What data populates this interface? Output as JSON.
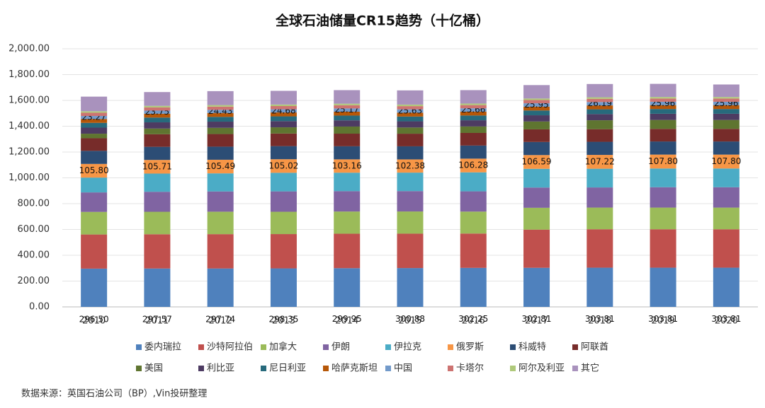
{
  "chart_data": {
    "type": "stacked_bar",
    "title": "全球石油储量CR15趋势（十亿桶）",
    "source": "数据来源：英国石油公司（BP）,Vin投研整理",
    "categories": [
      "2010",
      "2011",
      "2012",
      "2013",
      "2014",
      "2015",
      "2016",
      "2017",
      "2018",
      "2019",
      "2020"
    ],
    "ylim": [
      0,
      2000
    ],
    "yticks": [
      {
        "value": 0,
        "label": "0.00"
      },
      {
        "value": 200,
        "label": "200.00"
      },
      {
        "value": 400,
        "label": "400.00"
      },
      {
        "value": 600,
        "label": "600.00"
      },
      {
        "value": 800,
        "label": "800.00"
      },
      {
        "value": 1000,
        "label": "1,000.00"
      },
      {
        "value": 1200,
        "label": "1,200.00"
      },
      {
        "value": 1400,
        "label": "1,400.00"
      },
      {
        "value": 1600,
        "label": "1,600.00"
      },
      {
        "value": 1800,
        "label": "1,800.00"
      },
      {
        "value": 2000,
        "label": "2,000.00"
      }
    ],
    "series": [
      {
        "name": "委内瑞拉",
        "color": "#4f81bd",
        "values": [
          296.5,
          297.57,
          297.74,
          298.35,
          299.95,
          300.88,
          302.25,
          302.81,
          303.81,
          303.81,
          303.81
        ],
        "value_labels": [
          "296.50",
          "297.57",
          "297.74",
          "298.35",
          "299.95",
          "300.88",
          "302.25",
          "302.81",
          "303.81",
          "303.81",
          "303.81"
        ]
      },
      {
        "name": "沙特阿拉伯",
        "color": "#c0504d",
        "values": [
          264.5,
          265.4,
          265.9,
          265.8,
          267.0,
          266.5,
          266.2,
          296.0,
          297.7,
          297.6,
          297.5
        ]
      },
      {
        "name": "加拿大",
        "color": "#9bbb59",
        "values": [
          175,
          174,
          174,
          173,
          172,
          172,
          170,
          169,
          168,
          168,
          168
        ]
      },
      {
        "name": "伊朗",
        "color": "#8064a2",
        "values": [
          151,
          155,
          157,
          158,
          158,
          158,
          157,
          157,
          156,
          158,
          158
        ]
      },
      {
        "name": "伊拉克",
        "color": "#4bacc6",
        "values": [
          115,
          141,
          140,
          144,
          143,
          143,
          147,
          145,
          145,
          145,
          145
        ]
      },
      {
        "name": "俄罗斯",
        "color": "#f79646",
        "values": [
          105.8,
          105.71,
          105.49,
          105.02,
          103.16,
          102.38,
          106.28,
          106.59,
          107.22,
          107.8,
          107.8
        ],
        "value_labels": [
          "105.80",
          "105.71",
          "105.49",
          "105.02",
          "103.16",
          "102.38",
          "106.28",
          "106.59",
          "107.22",
          "107.80",
          "107.80"
        ]
      },
      {
        "name": "科威特",
        "color": "#2c4d75",
        "values": [
          101.5,
          101.5,
          101.5,
          101.5,
          101.5,
          101.5,
          101.5,
          101.5,
          101.5,
          101.5,
          101.5
        ]
      },
      {
        "name": "阿联酋",
        "color": "#772c2a",
        "values": [
          97.8,
          97.8,
          97.8,
          97.8,
          97.8,
          97.8,
          97.8,
          97.8,
          97.8,
          97.8,
          97.8
        ]
      },
      {
        "name": "美国",
        "color": "#5f7530",
        "values": [
          35,
          44,
          48,
          48,
          55,
          48,
          50,
          61,
          69,
          69,
          69
        ]
      },
      {
        "name": "利比亚",
        "color": "#4d3b62",
        "values": [
          47,
          48,
          48,
          48,
          48,
          48,
          48,
          48,
          48,
          48,
          48
        ]
      },
      {
        "name": "尼日利亚",
        "color": "#276a7c",
        "values": [
          37,
          37,
          37,
          37,
          37,
          37,
          37,
          37,
          37,
          37,
          37
        ]
      },
      {
        "name": "哈萨克斯坦",
        "color": "#b65708",
        "values": [
          30,
          30,
          30,
          30,
          30,
          30,
          30,
          30,
          30,
          30,
          30
        ]
      },
      {
        "name": "中国",
        "color": "#729aca",
        "values": [
          23.27,
          23.75,
          24.43,
          24.68,
          25.17,
          25.63,
          25.66,
          25.95,
          26.19,
          25.96,
          25.96
        ],
        "value_labels": [
          "23.27",
          "23.75",
          "24.43",
          "24.68",
          "25.17",
          "25.63",
          "25.66",
          "25.95",
          "26.19",
          "25.96",
          "25.96"
        ]
      },
      {
        "name": "卡塔尔",
        "color": "#cd7371",
        "values": [
          25,
          25,
          25,
          25,
          25,
          25,
          25,
          25,
          25,
          25,
          25
        ]
      },
      {
        "name": "阿尔及利亚",
        "color": "#afc97a",
        "values": [
          12,
          12,
          12,
          12,
          12,
          12,
          12,
          12,
          12,
          12,
          12
        ]
      },
      {
        "name": "其它",
        "color": "#a992bd",
        "values": [
          113,
          107,
          108,
          106,
          105,
          110,
          104,
          104,
          103,
          102,
          97
        ]
      }
    ]
  }
}
